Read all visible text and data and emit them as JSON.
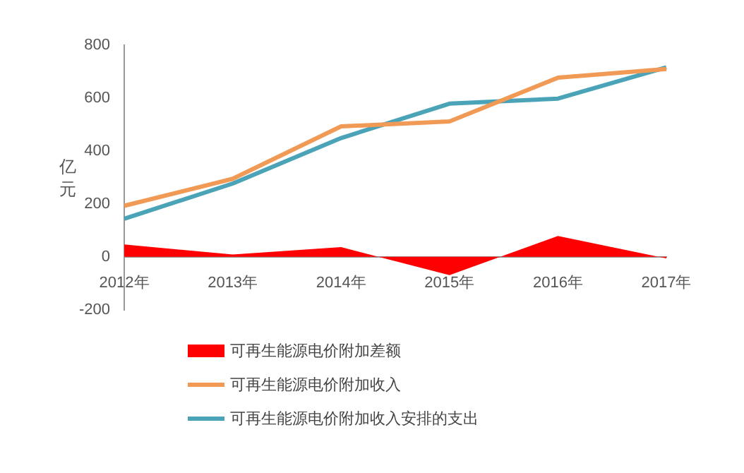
{
  "chart_data": {
    "type": "line",
    "ylabel": "亿元",
    "categories": [
      "2012年",
      "2013年",
      "2014年",
      "2015年",
      "2016年",
      "2017年"
    ],
    "ylim": [
      -200,
      800
    ],
    "yticks": [
      -200,
      0,
      200,
      400,
      600,
      800
    ],
    "grid": false,
    "legend": "bottom",
    "marker": "none",
    "line_style": "solid",
    "series": [
      {
        "name": "可再生能源电价附加差额",
        "type": "area",
        "color": "#ff0000",
        "values": [
          47,
          9,
          37,
          -69,
          79,
          -6
        ]
      },
      {
        "name": "可再生能源电价附加收入",
        "color": "#f09a55",
        "values": [
          193,
          295,
          493,
          512,
          677,
          710
        ]
      },
      {
        "name": "可再生能源电价附加收入安排的支出",
        "color": "#4ba3b8",
        "values": [
          144,
          277,
          449,
          579,
          598,
          716
        ]
      }
    ]
  }
}
